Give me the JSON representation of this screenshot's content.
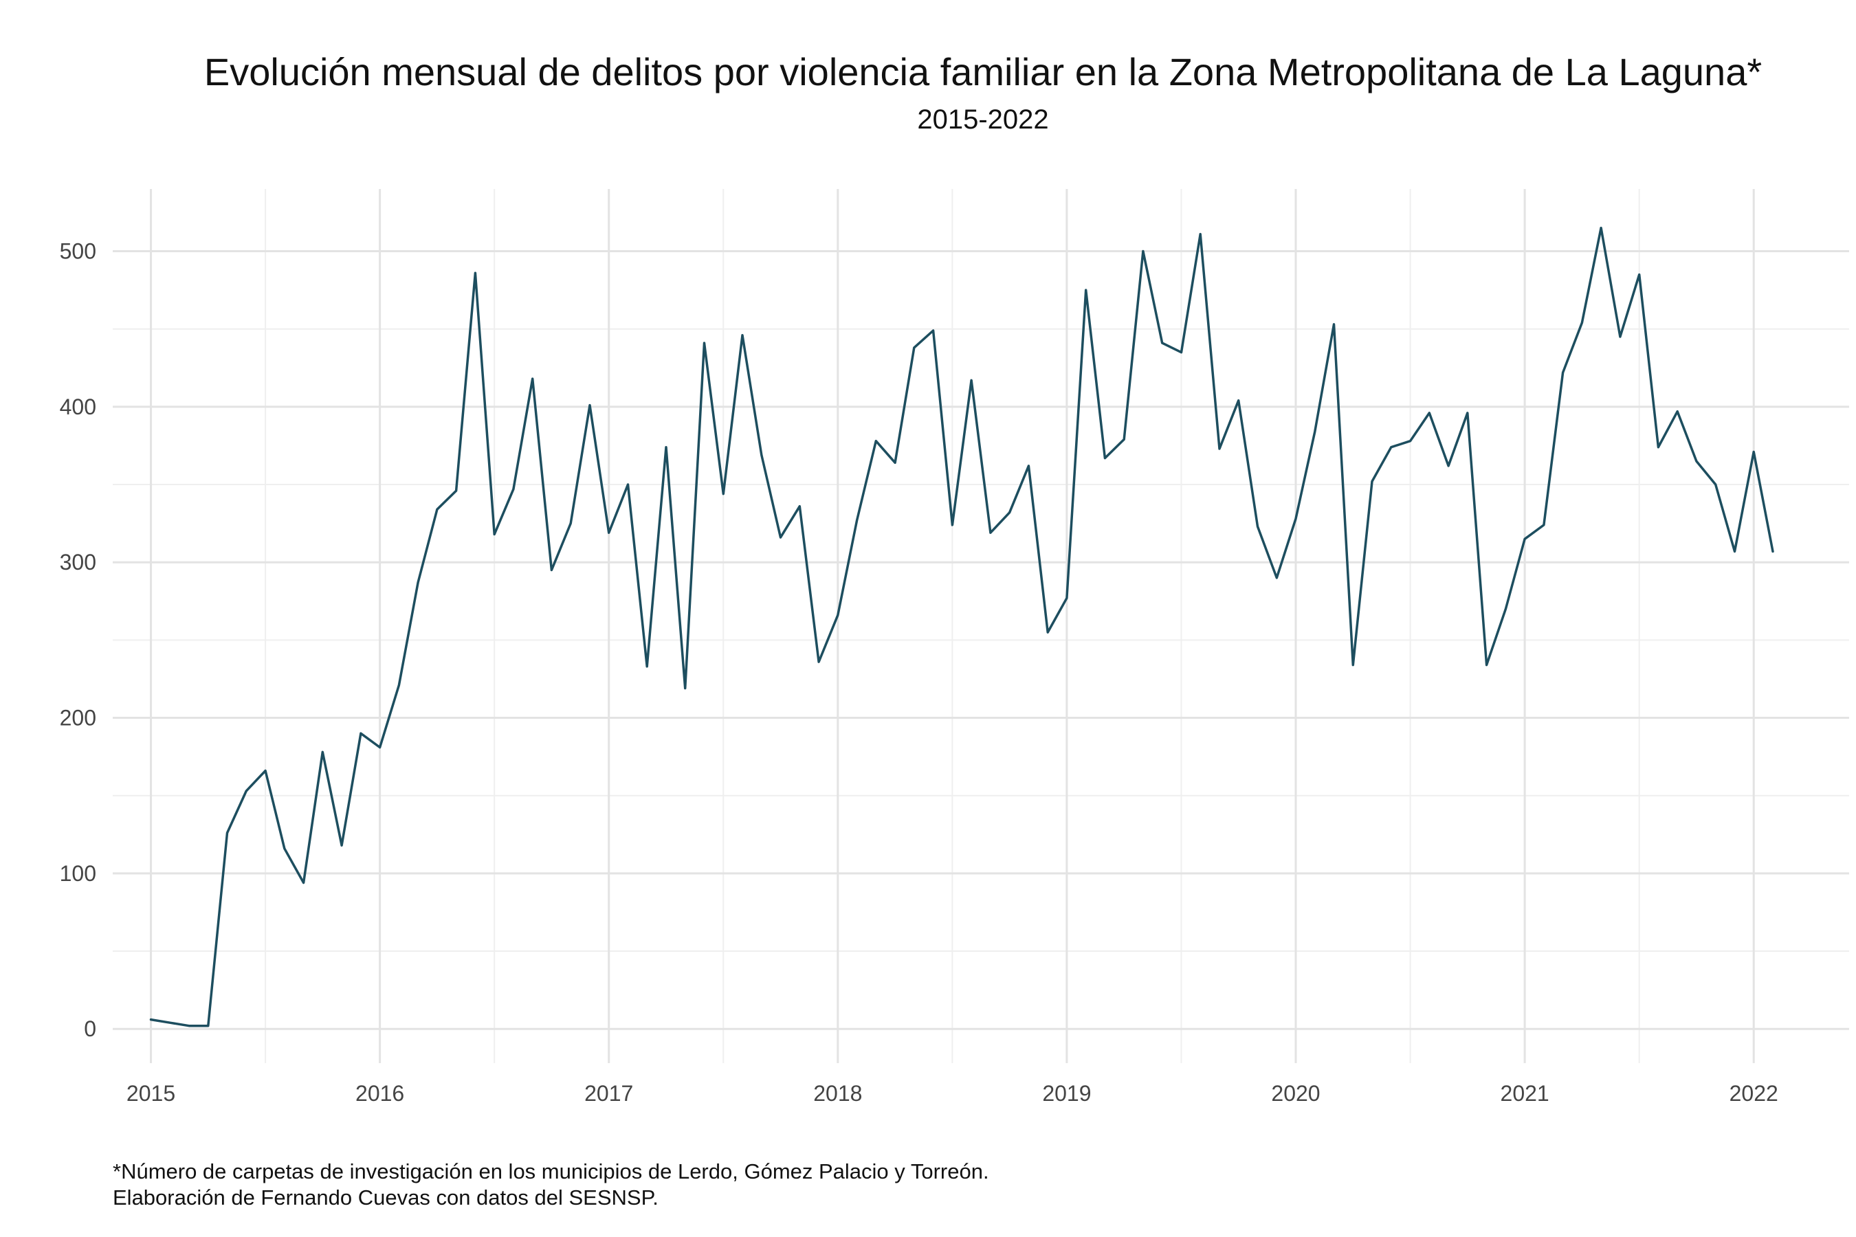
{
  "chart_data": {
    "type": "line",
    "title": "Evolución mensual de delitos por violencia familiar en la Zona Metropolitana de La Laguna*",
    "subtitle": "2015-2022",
    "xlabel": "",
    "ylabel": "",
    "x_ticks": [
      "2015",
      "2016",
      "2017",
      "2018",
      "2019",
      "2020",
      "2021",
      "2022"
    ],
    "y_ticks": [
      "0",
      "100",
      "200",
      "300",
      "400",
      "500"
    ],
    "xlim": [
      "2014-11",
      "2022-06"
    ],
    "ylim": [
      -22,
      540
    ],
    "grid": true,
    "line_color": "#1d4e5f",
    "start": "2015-01",
    "frequency": "monthly",
    "values": [
      6,
      4,
      2,
      2,
      126,
      153,
      166,
      116,
      94,
      178,
      118,
      190,
      181,
      221,
      287,
      334,
      346,
      486,
      318,
      347,
      418,
      295,
      325,
      401,
      319,
      350,
      233,
      374,
      219,
      441,
      344,
      446,
      369,
      316,
      336,
      236,
      266,
      327,
      378,
      364,
      438,
      449,
      324,
      417,
      319,
      332,
      362,
      255,
      277,
      475,
      367,
      379,
      500,
      441,
      435,
      511,
      373,
      404,
      323,
      290,
      328,
      384,
      453,
      234,
      352,
      374,
      378,
      396,
      362,
      396,
      234,
      270,
      315,
      324,
      422,
      454,
      515,
      445,
      485,
      374,
      397,
      365,
      350,
      307,
      371,
      307
    ]
  },
  "footnote": {
    "line1": "*Número de carpetas de investigación en los municipios de Lerdo, Gómez Palacio y Torreón.",
    "line2": "Elaboración de Fernando Cuevas con datos del SESNSP."
  }
}
